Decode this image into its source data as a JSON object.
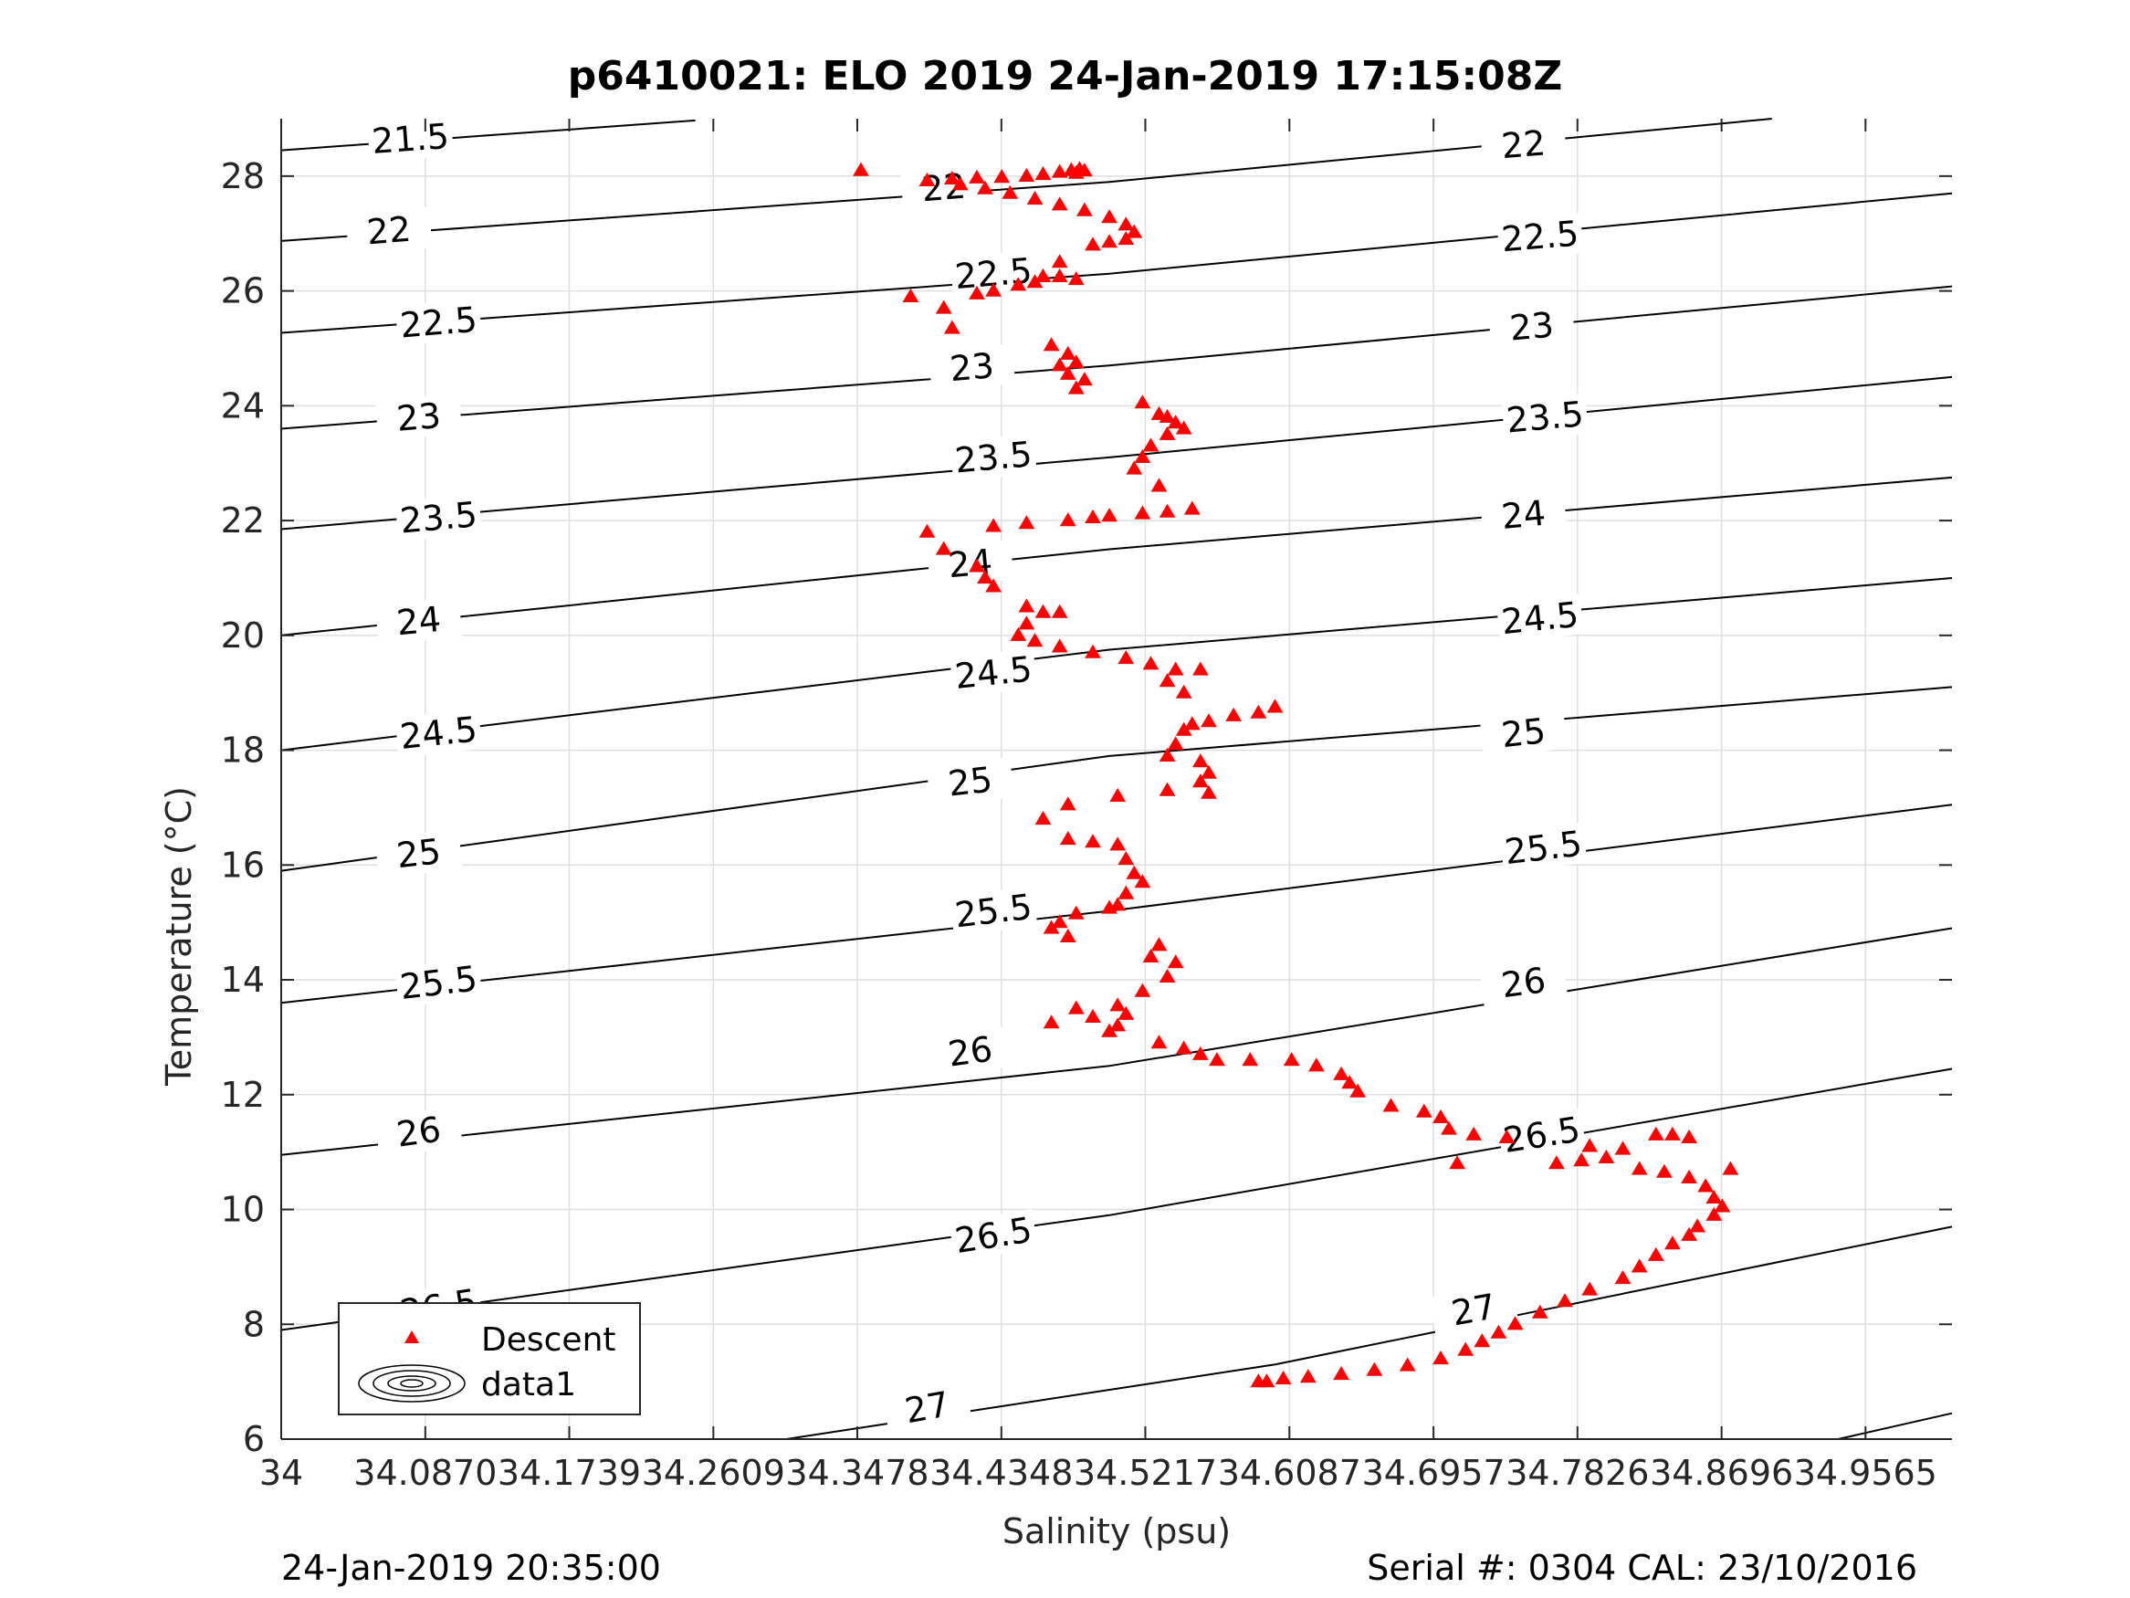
{
  "title": "p6410021: ELO 2019 24-Jan-2019 17:15:08Z",
  "footer_left": "24-Jan-2019 20:35:00",
  "footer_right": "Serial #: 0304  CAL: 23/10/2016",
  "colors": {
    "descent": "#ff0000",
    "contour": "#000000",
    "grid": "#dfdfdf",
    "axis": "#262626"
  },
  "chart_data": {
    "type": "scatter",
    "title": "p6410021: ELO 2019 24-Jan-2019 17:15:08Z",
    "xlabel": "Salinity (psu)",
    "ylabel": "Temperature (°C)",
    "xlim": [
      34,
      35.0087
    ],
    "ylim": [
      6,
      29
    ],
    "xticks": [
      34,
      34.087,
      34.1739,
      34.2609,
      34.3478,
      34.4348,
      34.5217,
      34.6087,
      34.6957,
      34.7826,
      34.8696,
      34.9565
    ],
    "xtick_labels": [
      "34",
      "34.0870",
      "34.1739",
      "34.2609",
      "34.3478",
      "34.4348",
      "34.5217",
      "34.6087",
      "34.6957",
      "34.7826",
      "34.8696",
      "34.9565"
    ],
    "yticks": [
      6,
      8,
      10,
      12,
      14,
      16,
      18,
      20,
      22,
      24,
      26,
      28
    ],
    "ytick_labels": [
      "6",
      "8",
      "10",
      "12",
      "14",
      "16",
      "18",
      "20",
      "22",
      "24",
      "26",
      "28"
    ],
    "grid": true,
    "legend": {
      "placement": "bottom-left",
      "entries": [
        {
          "label": "Descent",
          "marker": "triangle-red"
        },
        {
          "label": "data1",
          "marker": "contour-ellipses"
        }
      ]
    },
    "contours": [
      {
        "label": "21.5",
        "points": [
          [
            34,
            28.45
          ],
          [
            34.25,
            28.97
          ]
        ],
        "label_at": [
          [
            34.078,
            28.65
          ]
        ]
      },
      {
        "label": "22",
        "points": [
          [
            34,
            26.87
          ],
          [
            34.5,
            27.9
          ],
          [
            34.9,
            29.0
          ]
        ],
        "label_at": [
          [
            34.065,
            27.05
          ],
          [
            34.4,
            27.8
          ],
          [
            34.75,
            28.55
          ]
        ]
      },
      {
        "label": "22.5",
        "points": [
          [
            34,
            25.27
          ],
          [
            34.5,
            26.3
          ],
          [
            35.0087,
            27.7
          ]
        ],
        "label_at": [
          [
            34.095,
            25.45
          ],
          [
            34.43,
            26.3
          ],
          [
            34.76,
            26.95
          ]
        ]
      },
      {
        "label": "23",
        "points": [
          [
            34,
            23.6
          ],
          [
            34.5,
            24.7
          ],
          [
            35.0087,
            26.08
          ]
        ],
        "label_at": [
          [
            34.083,
            23.8
          ],
          [
            34.417,
            24.67
          ],
          [
            34.755,
            25.38
          ]
        ]
      },
      {
        "label": "23.5",
        "points": [
          [
            34,
            21.85
          ],
          [
            34.5,
            23.1
          ],
          [
            35.0087,
            24.5
          ]
        ],
        "label_at": [
          [
            34.095,
            22.05
          ],
          [
            34.43,
            23.1
          ],
          [
            34.763,
            23.8
          ]
        ]
      },
      {
        "label": "24",
        "points": [
          [
            34,
            20.0
          ],
          [
            34.5,
            21.5
          ],
          [
            35.0087,
            22.75
          ]
        ],
        "label_at": [
          [
            34.083,
            20.25
          ],
          [
            34.416,
            21.25
          ],
          [
            34.75,
            22.1
          ]
        ]
      },
      {
        "label": "24.5",
        "points": [
          [
            34,
            18.0
          ],
          [
            34.5,
            19.75
          ],
          [
            35.0087,
            21.0
          ]
        ],
        "label_at": [
          [
            34.095,
            18.3
          ],
          [
            34.43,
            19.35
          ],
          [
            34.76,
            20.3
          ]
        ]
      },
      {
        "label": "25",
        "points": [
          [
            34,
            15.9
          ],
          [
            34.5,
            17.9
          ],
          [
            35.0087,
            19.1
          ]
        ],
        "label_at": [
          [
            34.083,
            16.2
          ],
          [
            34.416,
            17.45
          ],
          [
            34.75,
            18.3
          ]
        ]
      },
      {
        "label": "25.5",
        "points": [
          [
            34,
            13.6
          ],
          [
            34.5,
            15.2
          ],
          [
            35.0087,
            17.05
          ]
        ],
        "label_at": [
          [
            34.095,
            13.95
          ],
          [
            34.43,
            15.2
          ],
          [
            34.762,
            16.3
          ]
        ]
      },
      {
        "label": "26",
        "points": [
          [
            34,
            10.95
          ],
          [
            34.5,
            12.5
          ],
          [
            35.0087,
            14.9
          ]
        ],
        "label_at": [
          [
            34.083,
            11.35
          ],
          [
            34.416,
            12.75
          ],
          [
            34.75,
            13.95
          ]
        ]
      },
      {
        "label": "26.5",
        "points": [
          [
            34,
            7.9
          ],
          [
            34.5,
            9.9
          ],
          [
            35.0087,
            12.45
          ]
        ],
        "label_at": [
          [
            34.095,
            8.3
          ],
          [
            34.43,
            9.55
          ],
          [
            34.761,
            11.3
          ]
        ]
      },
      {
        "label": "27",
        "points": [
          [
            34.305,
            6.0
          ],
          [
            34.6,
            7.3
          ],
          [
            35.0087,
            9.7
          ]
        ],
        "label_at": [
          [
            34.39,
            6.55
          ],
          [
            34.72,
            8.25
          ]
        ]
      },
      {
        "label": "",
        "points": [
          [
            34.94,
            6.0
          ],
          [
            35.0087,
            6.45
          ]
        ],
        "label_at": []
      }
    ],
    "series": [
      {
        "name": "Descent",
        "marker": "triangle",
        "color": "#ff0000",
        "points": [
          [
            34.35,
            28.1
          ],
          [
            34.39,
            27.92
          ],
          [
            34.405,
            27.95
          ],
          [
            34.42,
            27.97
          ],
          [
            34.435,
            27.98
          ],
          [
            34.45,
            28.0
          ],
          [
            34.46,
            28.03
          ],
          [
            34.47,
            28.07
          ],
          [
            34.477,
            28.1
          ],
          [
            34.482,
            28.12
          ],
          [
            34.485,
            28.09
          ],
          [
            34.48,
            28.05
          ],
          [
            34.41,
            27.85
          ],
          [
            34.425,
            27.78
          ],
          [
            34.44,
            27.7
          ],
          [
            34.455,
            27.6
          ],
          [
            34.47,
            27.5
          ],
          [
            34.485,
            27.4
          ],
          [
            34.5,
            27.28
          ],
          [
            34.51,
            27.15
          ],
          [
            34.515,
            27.02
          ],
          [
            34.51,
            26.9
          ],
          [
            34.5,
            26.85
          ],
          [
            34.49,
            26.8
          ],
          [
            34.47,
            26.5
          ],
          [
            34.46,
            26.25
          ],
          [
            34.445,
            26.1
          ],
          [
            34.43,
            26.0
          ],
          [
            34.42,
            25.95
          ],
          [
            34.4,
            25.7
          ],
          [
            34.405,
            25.35
          ],
          [
            34.38,
            25.9
          ],
          [
            34.455,
            26.15
          ],
          [
            34.47,
            26.25
          ],
          [
            34.48,
            26.2
          ],
          [
            34.465,
            25.05
          ],
          [
            34.475,
            24.9
          ],
          [
            34.48,
            24.75
          ],
          [
            34.47,
            24.7
          ],
          [
            34.475,
            24.55
          ],
          [
            34.48,
            24.3
          ],
          [
            34.485,
            24.45
          ],
          [
            34.52,
            24.05
          ],
          [
            34.53,
            23.85
          ],
          [
            34.535,
            23.8
          ],
          [
            34.54,
            23.7
          ],
          [
            34.545,
            23.6
          ],
          [
            34.535,
            23.5
          ],
          [
            34.525,
            23.3
          ],
          [
            34.52,
            23.1
          ],
          [
            34.515,
            22.9
          ],
          [
            34.53,
            22.6
          ],
          [
            34.55,
            22.2
          ],
          [
            34.535,
            22.15
          ],
          [
            34.52,
            22.12
          ],
          [
            34.5,
            22.08
          ],
          [
            34.49,
            22.05
          ],
          [
            34.475,
            22.0
          ],
          [
            34.45,
            21.95
          ],
          [
            34.43,
            21.9
          ],
          [
            34.39,
            21.8
          ],
          [
            34.4,
            21.5
          ],
          [
            34.42,
            21.2
          ],
          [
            34.425,
            21.0
          ],
          [
            34.43,
            20.85
          ],
          [
            34.45,
            20.5
          ],
          [
            34.46,
            20.4
          ],
          [
            34.47,
            20.4
          ],
          [
            34.45,
            20.2
          ],
          [
            34.445,
            20.0
          ],
          [
            34.455,
            19.9
          ],
          [
            34.47,
            19.8
          ],
          [
            34.49,
            19.7
          ],
          [
            34.51,
            19.6
          ],
          [
            34.525,
            19.5
          ],
          [
            34.54,
            19.4
          ],
          [
            34.555,
            19.4
          ],
          [
            34.535,
            19.2
          ],
          [
            34.545,
            19.0
          ],
          [
            34.6,
            18.75
          ],
          [
            34.59,
            18.65
          ],
          [
            34.575,
            18.6
          ],
          [
            34.56,
            18.5
          ],
          [
            34.55,
            18.45
          ],
          [
            34.545,
            18.35
          ],
          [
            34.54,
            18.1
          ],
          [
            34.535,
            17.9
          ],
          [
            34.555,
            17.8
          ],
          [
            34.56,
            17.6
          ],
          [
            34.555,
            17.45
          ],
          [
            34.56,
            17.25
          ],
          [
            34.535,
            17.3
          ],
          [
            34.505,
            17.2
          ],
          [
            34.475,
            17.05
          ],
          [
            34.46,
            16.8
          ],
          [
            34.475,
            16.45
          ],
          [
            34.49,
            16.4
          ],
          [
            34.505,
            16.35
          ],
          [
            34.51,
            16.1
          ],
          [
            34.515,
            15.85
          ],
          [
            34.52,
            15.7
          ],
          [
            34.51,
            15.5
          ],
          [
            34.505,
            15.3
          ],
          [
            34.5,
            15.25
          ],
          [
            34.48,
            15.15
          ],
          [
            34.47,
            15.0
          ],
          [
            34.465,
            14.9
          ],
          [
            34.475,
            14.75
          ],
          [
            34.53,
            14.6
          ],
          [
            34.525,
            14.4
          ],
          [
            34.54,
            14.3
          ],
          [
            34.535,
            14.05
          ],
          [
            34.52,
            13.8
          ],
          [
            34.505,
            13.55
          ],
          [
            34.51,
            13.4
          ],
          [
            34.505,
            13.2
          ],
          [
            34.5,
            13.1
          ],
          [
            34.49,
            13.35
          ],
          [
            34.48,
            13.5
          ],
          [
            34.465,
            13.25
          ],
          [
            34.53,
            12.9
          ],
          [
            34.545,
            12.8
          ],
          [
            34.555,
            12.7
          ],
          [
            34.565,
            12.6
          ],
          [
            34.585,
            12.6
          ],
          [
            34.61,
            12.6
          ],
          [
            34.625,
            12.5
          ],
          [
            34.64,
            12.35
          ],
          [
            34.645,
            12.2
          ],
          [
            34.65,
            12.05
          ],
          [
            34.67,
            11.8
          ],
          [
            34.69,
            11.7
          ],
          [
            34.7,
            11.6
          ],
          [
            34.705,
            11.4
          ],
          [
            34.72,
            11.3
          ],
          [
            34.74,
            11.25
          ],
          [
            34.71,
            10.8
          ],
          [
            34.77,
            10.8
          ],
          [
            34.785,
            10.85
          ],
          [
            34.8,
            10.9
          ],
          [
            34.81,
            11.05
          ],
          [
            34.83,
            11.3
          ],
          [
            34.84,
            11.3
          ],
          [
            34.85,
            11.25
          ],
          [
            34.79,
            11.1
          ],
          [
            34.82,
            10.7
          ],
          [
            34.835,
            10.65
          ],
          [
            34.85,
            10.55
          ],
          [
            34.86,
            10.4
          ],
          [
            34.865,
            10.2
          ],
          [
            34.87,
            10.05
          ],
          [
            34.865,
            9.9
          ],
          [
            34.855,
            9.7
          ],
          [
            34.85,
            9.55
          ],
          [
            34.84,
            9.4
          ],
          [
            34.83,
            9.2
          ],
          [
            34.82,
            9.0
          ],
          [
            34.81,
            8.8
          ],
          [
            34.79,
            8.6
          ],
          [
            34.775,
            8.4
          ],
          [
            34.76,
            8.2
          ],
          [
            34.745,
            8.0
          ],
          [
            34.735,
            7.85
          ],
          [
            34.725,
            7.7
          ],
          [
            34.715,
            7.55
          ],
          [
            34.7,
            7.4
          ],
          [
            34.68,
            7.28
          ],
          [
            34.66,
            7.2
          ],
          [
            34.64,
            7.13
          ],
          [
            34.62,
            7.08
          ],
          [
            34.605,
            7.05
          ],
          [
            34.595,
            7.0
          ],
          [
            34.59,
            7.0
          ],
          [
            34.875,
            10.7
          ]
        ]
      }
    ]
  }
}
